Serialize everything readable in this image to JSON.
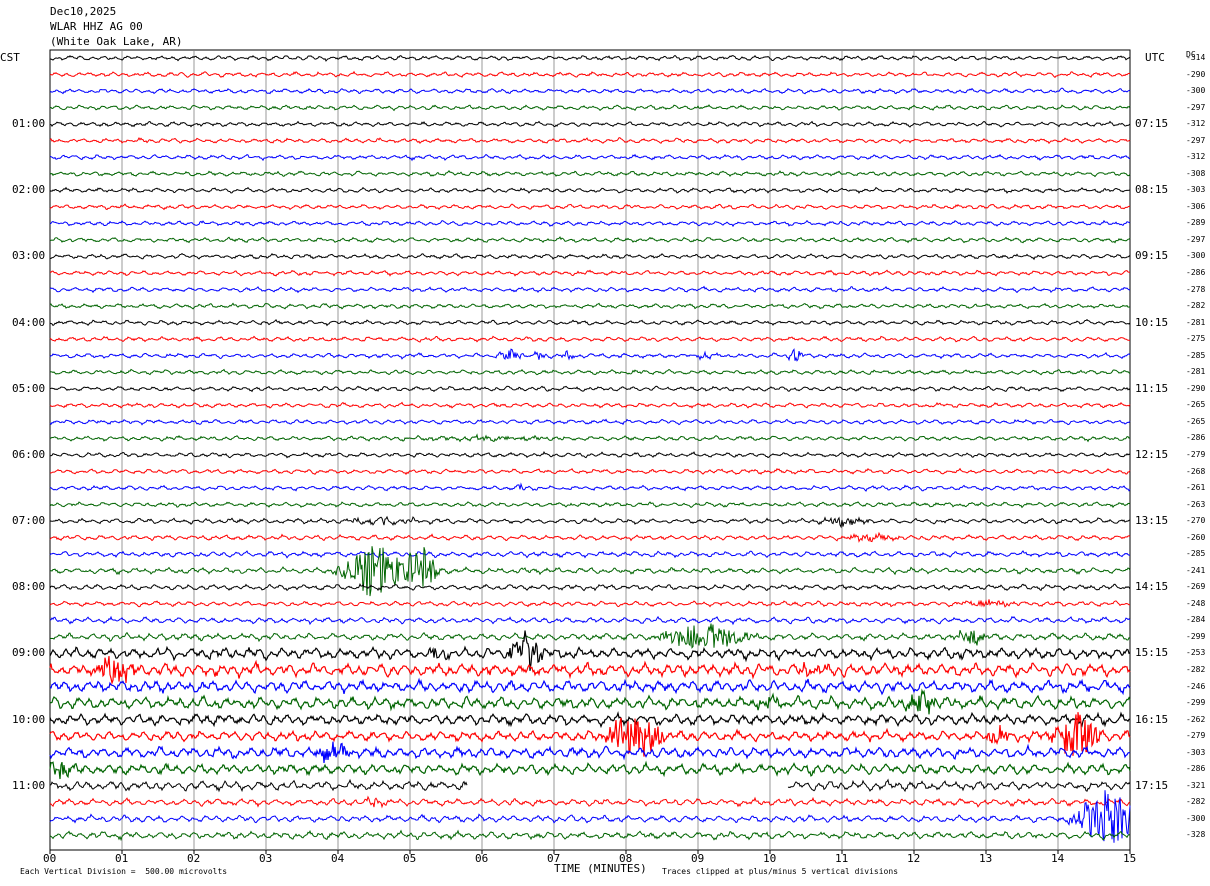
{
  "header": {
    "date": "Dec10,2025",
    "station": "WLAR HHZ AG 00",
    "location": "(White Oak Lake, AR)"
  },
  "left_zone": "CST",
  "right_zone": "UTC",
  "dc_label": "DC",
  "footer": {
    "time_axis": "TIME (MINUTES)",
    "scale": "Each Vertical Division =  500.00 microvolts",
    "clip": "Traces clipped at plus/minus 5 vertical divisions"
  },
  "colors": {
    "cycle": [
      "#000000",
      "#ff0000",
      "#0000ff",
      "#006400"
    ],
    "grid": "#808080"
  },
  "chart_data": {
    "type": "line",
    "title": "Dec10,2025",
    "x_range_minutes": [
      0,
      15
    ],
    "x_ticks": [
      "00",
      "01",
      "02",
      "03",
      "04",
      "05",
      "06",
      "07",
      "08",
      "09",
      "10",
      "11",
      "12",
      "13",
      "14",
      "15"
    ],
    "xlabel": "TIME (MINUTES)",
    "trace_minutes_per_line": 15,
    "left_hour_labels": [
      "01:00",
      "02:00",
      "03:00",
      "04:00",
      "05:00",
      "06:00",
      "07:00",
      "08:00",
      "09:00",
      "10:00",
      "11:00"
    ],
    "right_hour_labels": [
      "07:15",
      "08:15",
      "09:15",
      "10:15",
      "11:15",
      "12:15",
      "13:15",
      "14:15",
      "15:15",
      "16:15",
      "17:15"
    ],
    "dc_offsets": [
      -314,
      -290,
      -300,
      -297,
      -312,
      -297,
      -312,
      -308,
      -303,
      -306,
      -289,
      -297,
      -300,
      -286,
      -278,
      -282,
      -281,
      -275,
      -285,
      -281,
      -290,
      -265,
      -265,
      -286,
      -279,
      -268,
      -261,
      -263,
      -270,
      -260,
      -285,
      -241,
      -269,
      -248,
      -284,
      -299,
      -253,
      -282,
      -246,
      -299,
      -262,
      -279,
      -303,
      -286,
      -321,
      -282,
      -300,
      -328
    ],
    "amplitude_levels": [
      1,
      1,
      1,
      1,
      1,
      1,
      1,
      1,
      1,
      1,
      1,
      1,
      1,
      1,
      1,
      1,
      1,
      1,
      1,
      1,
      1,
      1,
      1,
      1,
      1,
      1,
      1,
      1,
      1.1,
      1.1,
      1.2,
      1.3,
      1.2,
      1.1,
      1.3,
      1.5,
      2.4,
      2.8,
      2.6,
      2.6,
      2.4,
      2.2,
      2.4,
      2.3,
      2.0,
      1.5,
      1.5,
      1.6
    ],
    "events": [
      {
        "line": 18,
        "minute": 6.4,
        "amp": 6,
        "dur": 0.25
      },
      {
        "line": 18,
        "minute": 7.2,
        "amp": 7,
        "dur": 0.1
      },
      {
        "line": 18,
        "minute": 6.8,
        "amp": 5,
        "dur": 0.1
      },
      {
        "line": 18,
        "minute": 10.35,
        "amp": 8,
        "dur": 0.15
      },
      {
        "line": 18,
        "minute": 9.1,
        "amp": 4,
        "dur": 0.2
      },
      {
        "line": 23,
        "minute": 6.0,
        "amp": 2,
        "dur": 1.5
      },
      {
        "line": 26,
        "minute": 6.55,
        "amp": 4,
        "dur": 0.08
      },
      {
        "line": 28,
        "minute": 4.6,
        "amp": 4,
        "dur": 0.6
      },
      {
        "line": 28,
        "minute": 11.0,
        "amp": 4,
        "dur": 0.5
      },
      {
        "line": 29,
        "minute": 11.4,
        "amp": 3,
        "dur": 0.6
      },
      {
        "line": 31,
        "minute": 4.5,
        "amp": 30,
        "dur": 0.6
      },
      {
        "line": 31,
        "minute": 5.15,
        "amp": 30,
        "dur": 0.3
      },
      {
        "line": 33,
        "minute": 13.0,
        "amp": 4,
        "dur": 0.5
      },
      {
        "line": 35,
        "minute": 9.1,
        "amp": 15,
        "dur": 0.8
      },
      {
        "line": 35,
        "minute": 12.8,
        "amp": 8,
        "dur": 0.3
      },
      {
        "line": 36,
        "minute": 6.6,
        "amp": 22,
        "dur": 0.3
      },
      {
        "line": 36,
        "minute": 5.4,
        "amp": 8,
        "dur": 0.2
      },
      {
        "line": 37,
        "minute": 0.9,
        "amp": 15,
        "dur": 0.4
      },
      {
        "line": 37,
        "minute": 10.6,
        "amp": 6,
        "dur": 0.3
      },
      {
        "line": 39,
        "minute": 12.1,
        "amp": 12,
        "dur": 0.3
      },
      {
        "line": 39,
        "minute": 10.0,
        "amp": 6,
        "dur": 0.3
      },
      {
        "line": 41,
        "minute": 8.1,
        "amp": 30,
        "dur": 0.5
      },
      {
        "line": 41,
        "minute": 14.25,
        "amp": 30,
        "dur": 0.4
      },
      {
        "line": 41,
        "minute": 13.15,
        "amp": 10,
        "dur": 0.2
      },
      {
        "line": 42,
        "minute": 3.9,
        "amp": 8,
        "dur": 0.4
      },
      {
        "line": 43,
        "minute": 0.2,
        "amp": 8,
        "dur": 0.3
      },
      {
        "line": 45,
        "minute": 4.5,
        "amp": 5,
        "dur": 0.2
      },
      {
        "line": 46,
        "minute": 14.7,
        "amp": 30,
        "dur": 0.6
      }
    ],
    "gaps": [
      {
        "line": 44,
        "from": 5.8,
        "to": 10.25
      }
    ]
  }
}
